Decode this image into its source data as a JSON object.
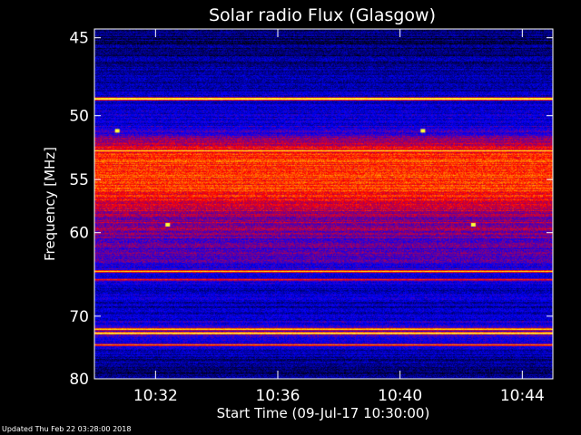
{
  "chart_data": {
    "type": "heatmap",
    "title": "Solar radio Flux (Glasgow)",
    "xlabel": "Start Time (09-Jul-17 10:30:00)",
    "ylabel": "Frequency [MHz]",
    "xlim": [
      "10:30:00",
      "10:45:00"
    ],
    "ylim": [
      80,
      44.5
    ],
    "x_ticks": [
      "10:32",
      "10:36",
      "10:40",
      "10:44"
    ],
    "y_ticks": [
      45,
      50,
      55,
      60,
      70,
      80
    ],
    "colormap": [
      "#000000",
      "#0000ff",
      "#ff0000",
      "#ffff00",
      "#ffffff"
    ],
    "background_profile": [
      {
        "freq": 45,
        "level": 0.1
      },
      {
        "freq": 48,
        "level": 0.18
      },
      {
        "freq": 51,
        "level": 0.25
      },
      {
        "freq": 53,
        "level": 0.55
      },
      {
        "freq": 56,
        "level": 0.55
      },
      {
        "freq": 58,
        "level": 0.42
      },
      {
        "freq": 62,
        "level": 0.32
      },
      {
        "freq": 66,
        "level": 0.22
      },
      {
        "freq": 69,
        "level": 0.18
      },
      {
        "freq": 72,
        "level": 0.28
      },
      {
        "freq": 75,
        "level": 0.18
      },
      {
        "freq": 80,
        "level": 0.1
      }
    ],
    "bands": [
      {
        "freq": 48.8,
        "level": 1.0
      },
      {
        "freq": 52.6,
        "level": 0.85
      },
      {
        "freq": 64.2,
        "level": 0.8
      },
      {
        "freq": 65.2,
        "level": 0.6
      },
      {
        "freq": 71.8,
        "level": 0.85
      },
      {
        "freq": 72.4,
        "level": 0.95
      },
      {
        "freq": 74.2,
        "level": 0.7
      }
    ],
    "spots": [
      {
        "time": "10:30:44",
        "freq": 51.1,
        "level": 0.8
      },
      {
        "time": "10:40:44",
        "freq": 51.1,
        "level": 0.8
      },
      {
        "time": "10:32:23",
        "freq": 59.2,
        "level": 0.8
      },
      {
        "time": "10:42:23",
        "freq": 59.2,
        "level": 0.8
      }
    ]
  },
  "footer": {
    "updated": "Updated Thu Feb 22 03:28:00 2018"
  }
}
